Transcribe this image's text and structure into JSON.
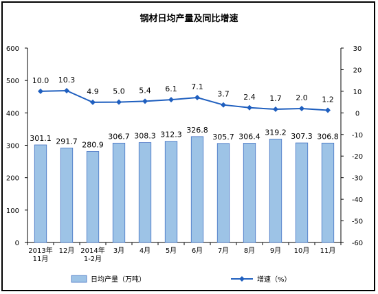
{
  "chart_data": {
    "type": "bar",
    "title": "钢材日均产量及同比增速",
    "categories": [
      [
        "2013年",
        "11月"
      ],
      [
        "12月"
      ],
      [
        "2014年",
        "1-2月"
      ],
      [
        "3月"
      ],
      [
        "4月"
      ],
      [
        "5月"
      ],
      [
        "6月"
      ],
      [
        "7月"
      ],
      [
        "8月"
      ],
      [
        "9月"
      ],
      [
        "10月"
      ],
      [
        "11月"
      ]
    ],
    "series": [
      {
        "name": "日均产量（万吨）",
        "type": "bar",
        "axis": "left",
        "color": "#9DC3E6",
        "values": [
          301.1,
          291.7,
          280.9,
          306.7,
          308.3,
          312.3,
          326.8,
          305.7,
          306.4,
          319.2,
          307.3,
          306.8
        ],
        "labels": [
          "301.1",
          "291.7",
          "280.9",
          "306.7",
          "308.3",
          "312.3",
          "326.8",
          "305.7",
          "306.4",
          "319.2",
          "307.3",
          "306.8"
        ]
      },
      {
        "name": "增速（%）",
        "type": "line",
        "axis": "right",
        "color": "#1F5FBF",
        "values": [
          10.0,
          10.3,
          4.9,
          5.0,
          5.4,
          6.1,
          7.1,
          3.7,
          2.4,
          1.7,
          2.0,
          1.2
        ],
        "labels": [
          "10.0",
          "10.3",
          "4.9",
          "5.0",
          "5.4",
          "6.1",
          "7.1",
          "3.7",
          "2.4",
          "1.7",
          "2.0",
          "1.2"
        ]
      }
    ],
    "y_left": {
      "min": 0,
      "max": 600,
      "ticks": [
        "0",
        "100",
        "200",
        "300",
        "400",
        "500",
        "600"
      ]
    },
    "y_right": {
      "min": -60,
      "max": 30,
      "ticks": [
        "-60",
        "-50",
        "-40",
        "-30",
        "-20",
        "-10",
        "0",
        "10",
        "20",
        "30"
      ]
    },
    "grid": false,
    "legend_position": "bottom"
  }
}
